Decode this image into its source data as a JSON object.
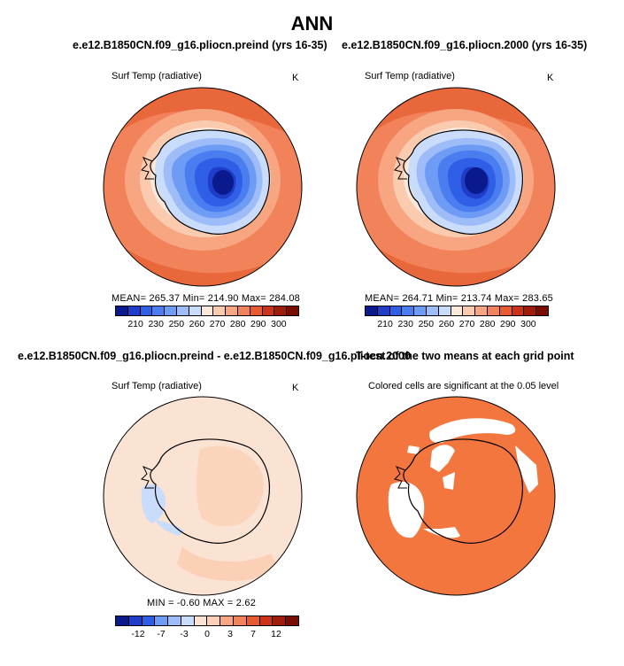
{
  "title": "ANN",
  "panels": {
    "top_left": {
      "case_title": "e.e12.B1850CN.f09_g16.pliocn.preind (yrs 16-35)",
      "variable": "Surf Temp (radiative)",
      "units": "K",
      "stats": "MEAN= 265.37   Min= 214.90   Max= 284.08"
    },
    "top_right": {
      "case_title": "e.e12.B1850CN.f09_g16.pliocn.2000 (yrs 16-35)",
      "variable": "Surf Temp (radiative)",
      "units": "K",
      "stats": "MEAN= 264.71   Min= 213.74   Max= 283.65"
    },
    "bottom_left": {
      "case_title": "e.e12.B1850CN.f09_g16.pliocn.preind - e.e12.B1850CN.f09_g16.pliocn.2000",
      "variable": "Surf Temp (radiative)",
      "units": "K",
      "stats": "MIN =   -0.60  MAX =    2.62"
    },
    "bottom_right": {
      "case_title": "T-test of the two means at each grid point",
      "subtitle": "Colored cells are significant at the 0.05 level"
    }
  },
  "colorbars": {
    "absolute": {
      "labels": [
        "210",
        "230",
        "250",
        "260",
        "270",
        "280",
        "290",
        "300"
      ],
      "colors": [
        "#0a1a8c",
        "#1f3dc8",
        "#2f5fe6",
        "#4a7ef0",
        "#6e9cf5",
        "#9dbcf8",
        "#c9dcfb",
        "#fbe8dc",
        "#fbcbb0",
        "#f8a682",
        "#f2825a",
        "#e85a30",
        "#cc3318",
        "#a01c0a",
        "#7a0c04"
      ]
    },
    "difference": {
      "labels": [
        "-12",
        "-7",
        "-3",
        "0",
        "3",
        "7",
        "12"
      ],
      "colors": [
        "#0a1a8c",
        "#1f3dc8",
        "#2f5fe6",
        "#6e9cf5",
        "#9dbcf8",
        "#c9dcfb",
        "#fbe3d3",
        "#fbd0b6",
        "#f8a682",
        "#f2825a",
        "#e85a30",
        "#cc3318",
        "#a01c0a",
        "#7a0c04"
      ]
    }
  }
}
